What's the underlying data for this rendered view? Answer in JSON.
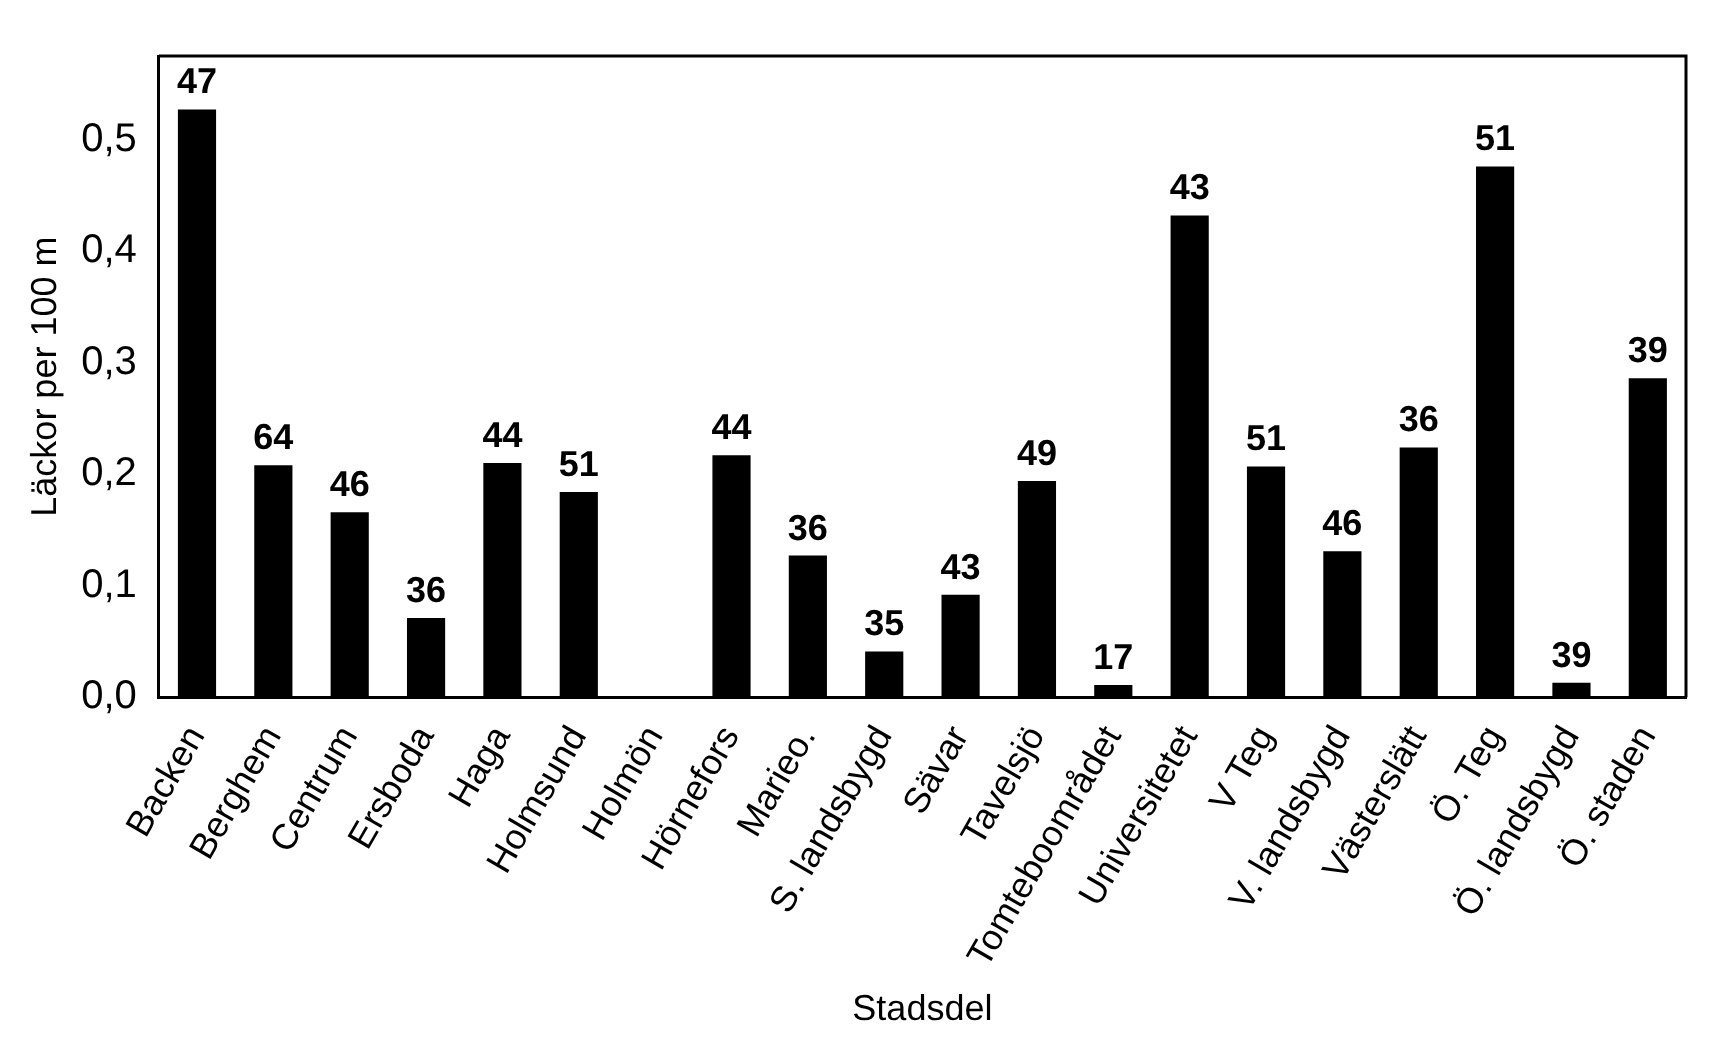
{
  "chart_data": {
    "type": "bar",
    "xlabel": "Stadsdel",
    "ylabel": "Läckor per 100 m",
    "categories": [
      "Backen",
      "Berghem",
      "Centrum",
      "Ersboda",
      "Haga",
      "Holmsund",
      "Holmön",
      "Hörnefors",
      "Marieo.",
      "S. landsbygd",
      "Sävar",
      "Tavelsjö",
      "Tomteboområdet",
      "Universitetet",
      "V Teg",
      "V. landsbygd",
      "Västerslätt",
      "Ö. Teg",
      "Ö. landsbygd",
      "Ö. staden"
    ],
    "values": [
      0.527,
      0.208,
      0.166,
      0.071,
      0.21,
      0.184,
      0.001,
      0.217,
      0.127,
      0.041,
      0.092,
      0.194,
      0.011,
      0.432,
      0.207,
      0.131,
      0.224,
      0.476,
      0.013,
      0.286
    ],
    "annotations": [
      {
        "text": "47",
        "x": "Backen",
        "y": 0.527
      },
      {
        "text": "64",
        "x": "Berghem",
        "y": 0.208
      },
      {
        "text": "46",
        "x": "Centrum",
        "y": 0.166
      },
      {
        "text": "36",
        "x": "Ersboda",
        "y": 0.071
      },
      {
        "text": "44",
        "x": "Haga",
        "y": 0.21
      },
      {
        "text": "51",
        "x": "Holmsund",
        "y": 0.184
      },
      {
        "text": "44",
        "x": "Hörnefors",
        "y": 0.217
      },
      {
        "text": "36",
        "x": "Marieo.",
        "y": 0.127
      },
      {
        "text": "35",
        "x": "S. landsbygd",
        "y": 0.041
      },
      {
        "text": "43",
        "x": "Sävar",
        "y": 0.092
      },
      {
        "text": "49",
        "x": "Tavelsjö",
        "y": 0.194
      },
      {
        "text": "17",
        "x": "Tomteboområdet",
        "y": 0.011
      },
      {
        "text": "43",
        "x": "Universitetet",
        "y": 0.432
      },
      {
        "text": "51",
        "x": "V Teg",
        "y": 0.207
      },
      {
        "text": "46",
        "x": "V. landsbygd",
        "y": 0.131
      },
      {
        "text": "36",
        "x": "Västerslätt",
        "y": 0.224
      },
      {
        "text": "51",
        "x": "Ö. Teg",
        "y": 0.476
      },
      {
        "text": "39",
        "x": "Ö. landsbygd",
        "y": 0.013
      },
      {
        "text": "39",
        "x": "Ö. staden",
        "y": 0.286
      }
    ],
    "color": "#000000",
    "ylim": [
      0,
      0.575
    ],
    "yticks": [
      {
        "value": 0,
        "label": "0,0"
      },
      {
        "value": 0.1,
        "label": "0,1"
      },
      {
        "value": 0.2,
        "label": "0,2"
      },
      {
        "value": 0.3,
        "label": "0,3"
      },
      {
        "value": 0.4,
        "label": "0,4"
      },
      {
        "value": 0.5,
        "label": "0,5"
      }
    ],
    "grid": false,
    "legend": false
  }
}
